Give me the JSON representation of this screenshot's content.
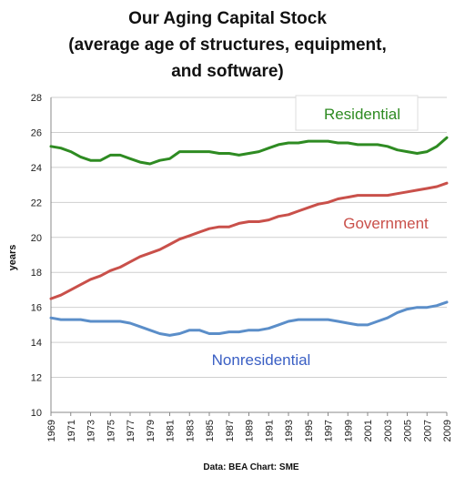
{
  "chart_data": {
    "type": "line",
    "title": [
      "Our Aging Capital Stock",
      "(average age of structures, equipment,",
      "and software)"
    ],
    "xlabel": "",
    "ylabel": "years",
    "source": "Data: BEA  Chart: SME",
    "ylim": [
      10,
      28
    ],
    "yticks": [
      10,
      12,
      14,
      16,
      18,
      20,
      22,
      24,
      26,
      28
    ],
    "xlim": [
      1969,
      2009
    ],
    "xticks": [
      1969,
      1971,
      1973,
      1975,
      1977,
      1979,
      1981,
      1983,
      1985,
      1987,
      1989,
      1991,
      1993,
      1995,
      1997,
      1999,
      2001,
      2003,
      2005,
      2007,
      2009
    ],
    "grid": "horizontal",
    "legend": "inline labels",
    "x": [
      1969,
      1970,
      1971,
      1972,
      1973,
      1974,
      1975,
      1976,
      1977,
      1978,
      1979,
      1980,
      1981,
      1982,
      1983,
      1984,
      1985,
      1986,
      1987,
      1988,
      1989,
      1990,
      1991,
      1992,
      1993,
      1994,
      1995,
      1996,
      1997,
      1998,
      1999,
      2000,
      2001,
      2002,
      2003,
      2004,
      2005,
      2006,
      2007,
      2008,
      2009
    ],
    "series": [
      {
        "name": "Residential",
        "color": "#2e8b22",
        "values": [
          25.2,
          25.1,
          24.9,
          24.6,
          24.4,
          24.4,
          24.7,
          24.7,
          24.5,
          24.3,
          24.2,
          24.4,
          24.5,
          24.9,
          24.9,
          24.9,
          24.9,
          24.8,
          24.8,
          24.7,
          24.8,
          24.9,
          25.1,
          25.3,
          25.4,
          25.4,
          25.5,
          25.5,
          25.5,
          25.4,
          25.4,
          25.3,
          25.3,
          25.3,
          25.2,
          25.0,
          24.9,
          24.8,
          24.9,
          25.2,
          25.7
        ]
      },
      {
        "name": "Government",
        "color": "#c9504a",
        "values": [
          16.5,
          16.7,
          17.0,
          17.3,
          17.6,
          17.8,
          18.1,
          18.3,
          18.6,
          18.9,
          19.1,
          19.3,
          19.6,
          19.9,
          20.1,
          20.3,
          20.5,
          20.6,
          20.6,
          20.8,
          20.9,
          20.9,
          21.0,
          21.2,
          21.3,
          21.5,
          21.7,
          21.9,
          22.0,
          22.2,
          22.3,
          22.4,
          22.4,
          22.4,
          22.4,
          22.5,
          22.6,
          22.7,
          22.8,
          22.9,
          23.1
        ]
      },
      {
        "name": "Nonresidential",
        "color": "#5b8ec9",
        "values": [
          15.4,
          15.3,
          15.3,
          15.3,
          15.2,
          15.2,
          15.2,
          15.2,
          15.1,
          14.9,
          14.7,
          14.5,
          14.4,
          14.5,
          14.7,
          14.7,
          14.5,
          14.5,
          14.6,
          14.6,
          14.7,
          14.7,
          14.8,
          15.0,
          15.2,
          15.3,
          15.3,
          15.3,
          15.3,
          15.2,
          15.1,
          15.0,
          15.0,
          15.2,
          15.4,
          15.7,
          15.9,
          16.0,
          16.0,
          16.1,
          16.3
        ]
      }
    ]
  }
}
